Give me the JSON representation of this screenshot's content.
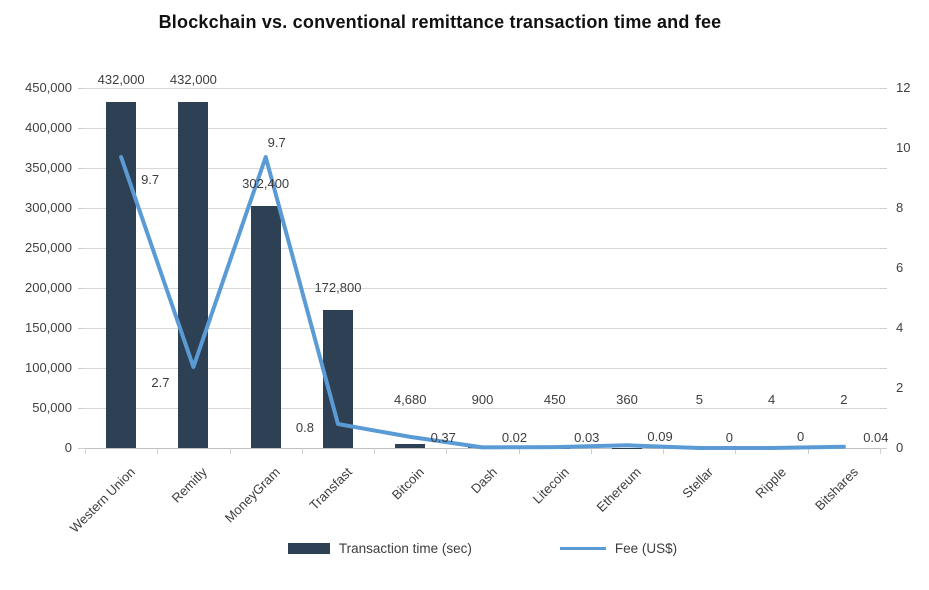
{
  "chart_data": {
    "type": "combo-bar-line",
    "title": "Blockchain vs. conventional remittance transaction time and fee",
    "categories": [
      "Western Union",
      "Remitly",
      "MoneyGram",
      "Transfast",
      "Bitcoin",
      "Dash",
      "Litecoin",
      "Ethereum",
      "Stellar",
      "Ripple",
      "Bitshares"
    ],
    "series": [
      {
        "name": "Transaction time (sec)",
        "type": "bar",
        "axis": "left",
        "color": "#2e4053",
        "values": [
          432000,
          432000,
          302400,
          172800,
          4680,
          900,
          450,
          360,
          5,
          4,
          2
        ],
        "labels": [
          "432,000",
          "432,000",
          "302,400",
          "172,800",
          "4,680",
          "900",
          "450",
          "360",
          "5",
          "4",
          "2"
        ]
      },
      {
        "name": "Fee (US$)",
        "type": "line",
        "axis": "right",
        "color": "#5b9bd5",
        "values": [
          9.7,
          2.7,
          9.7,
          0.8,
          0.37,
          0.02,
          0.03,
          0.09,
          0,
          0,
          0.04
        ],
        "labels": [
          "9.7",
          "2.7",
          "9.7",
          "0.8",
          "0.37",
          "0.02",
          "0.03",
          "0.09",
          "0",
          "0",
          "0.04"
        ]
      }
    ],
    "left_axis": {
      "min": 0,
      "max": 450000,
      "step": 50000,
      "tick_labels": [
        "450,000",
        "400,000",
        "350,000",
        "300,000",
        "250,000",
        "200,000",
        "150,000",
        "100,000",
        "50,000",
        "0"
      ]
    },
    "right_axis": {
      "min": 0,
      "max": 12,
      "step": 2,
      "tick_labels": [
        "12",
        "10",
        "8",
        "6",
        "4",
        "2",
        "0"
      ]
    },
    "grid": true,
    "legend_position": "bottom",
    "colors": {
      "gridline": "#d9d9d9",
      "axis_text": "#3d3d3d",
      "background": "#ffffff"
    }
  }
}
